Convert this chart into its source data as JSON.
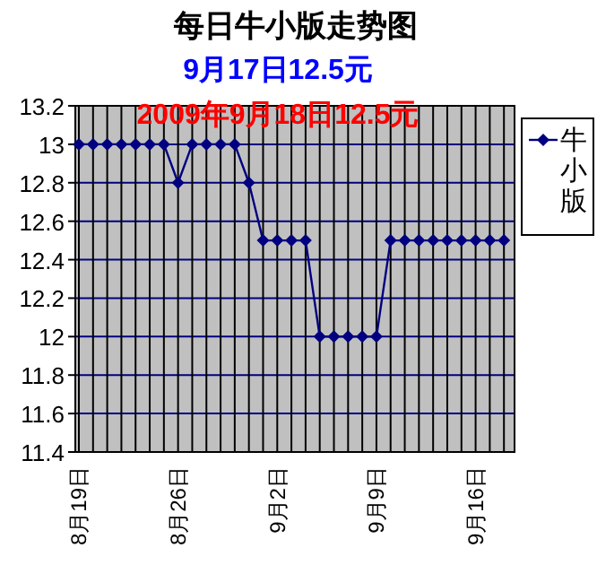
{
  "chart_data": {
    "type": "line",
    "title": "每日牛小版走势图",
    "subtitle": "9月17日12.5元",
    "annotations": [
      "2009年9月18日12.5元"
    ],
    "categories": [
      "8月19日",
      null,
      null,
      null,
      null,
      null,
      null,
      "8月26日",
      null,
      null,
      null,
      null,
      null,
      null,
      "9月2日",
      null,
      null,
      null,
      null,
      null,
      null,
      "9月9日",
      null,
      null,
      null,
      null,
      null,
      null,
      "9月16日",
      null,
      null
    ],
    "series": [
      {
        "name": "牛小版",
        "color": "#000080",
        "values": [
          13,
          13,
          13,
          13,
          13,
          13,
          13,
          12.8,
          13,
          13,
          13,
          13,
          12.8,
          12.5,
          12.5,
          12.5,
          12.5,
          12,
          12,
          12,
          12,
          12,
          12.5,
          12.5,
          12.5,
          12.5,
          12.5,
          12.5,
          12.5,
          12.5,
          12.5
        ]
      }
    ],
    "ylim": [
      11.4,
      13.2
    ],
    "yticks": [
      11.4,
      11.6,
      11.8,
      12,
      12.2,
      12.4,
      12.6,
      12.8,
      13,
      13.2
    ],
    "grid": true,
    "legend": "right",
    "marker": "diamond",
    "line_style": "solid"
  }
}
